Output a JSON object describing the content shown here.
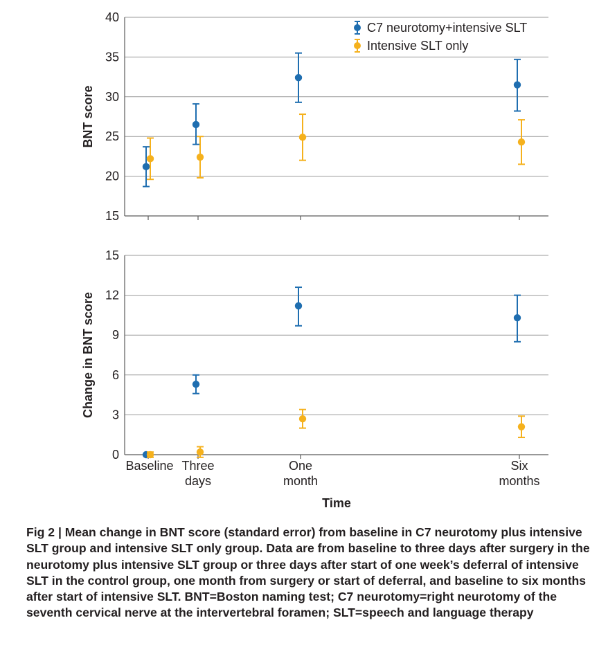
{
  "colors": {
    "c7": "#1f6eb0",
    "slt": "#f5b11d",
    "grid": "#9a9a9a",
    "axis": "#5a5a5a"
  },
  "legend": [
    {
      "label": "C7 neurotomy+intensive SLT",
      "color_key": "c7"
    },
    {
      "label": "Intensive SLT only",
      "color_key": "slt"
    }
  ],
  "chart_data": [
    {
      "type": "scatter",
      "ylabel": "BNT score",
      "ylim": [
        15,
        40
      ],
      "yticks": [
        15,
        20,
        25,
        30,
        35,
        40
      ],
      "grid": true,
      "legend_position": "top-right",
      "x_categories": [
        "Baseline",
        "Three days",
        "One month",
        "Six months"
      ],
      "x_day": [
        0,
        3,
        30,
        180
      ],
      "series": [
        {
          "name": "C7 neurotomy+intensive SLT",
          "x": [
            0,
            3,
            30,
            180
          ],
          "y": [
            21.2,
            26.5,
            32.4,
            31.5
          ],
          "err_low": [
            18.7,
            24.0,
            29.3,
            28.2
          ],
          "err_high": [
            23.7,
            29.1,
            35.5,
            34.7
          ]
        },
        {
          "name": "Intensive SLT only",
          "x": [
            0,
            3,
            30,
            180
          ],
          "y": [
            22.2,
            22.4,
            24.9,
            24.3
          ],
          "err_low": [
            19.6,
            19.8,
            22.0,
            21.5
          ],
          "err_high": [
            24.8,
            25.0,
            27.8,
            27.1
          ]
        }
      ]
    },
    {
      "type": "scatter",
      "ylabel": "Change in BNT score",
      "xlabel": "Time",
      "ylim": [
        0,
        15
      ],
      "yticks": [
        0,
        3,
        6,
        9,
        12,
        15
      ],
      "grid": true,
      "x_categories": [
        "Baseline",
        "Three days",
        "One month",
        "Six months"
      ],
      "x_day": [
        0,
        3,
        30,
        180
      ],
      "x_tick_lines": [
        [
          "Baseline"
        ],
        [
          "Three",
          "days"
        ],
        [
          "One",
          "month"
        ],
        [
          "Six",
          "months"
        ]
      ],
      "series": [
        {
          "name": "C7 neurotomy+intensive SLT",
          "x": [
            0,
            3,
            30,
            180
          ],
          "y": [
            0,
            5.3,
            11.2,
            10.3
          ],
          "err_low": [
            0,
            4.6,
            9.7,
            8.5
          ],
          "err_high": [
            0,
            6.0,
            12.6,
            12.0
          ]
        },
        {
          "name": "Intensive SLT only",
          "x": [
            0,
            3,
            30,
            180
          ],
          "y": [
            0,
            0.2,
            2.7,
            2.1
          ],
          "err_low": [
            -0.2,
            -0.2,
            2.0,
            1.3
          ],
          "err_high": [
            0.2,
            0.6,
            3.4,
            2.9
          ]
        }
      ]
    }
  ],
  "caption": "Fig 2 | Mean change in BNT score (standard error) from baseline in C7 neurotomy plus intensive SLT group and intensive SLT only group. Data are from baseline to three days after surgery in the neurotomy plus intensive SLT group or three days after start of one week’s deferral of intensive SLT in the control group, one month from surgery or start of deferral, and baseline to six months after start of intensive SLT. BNT=Boston naming test; C7 neurotomy=right neurotomy of the seventh cervical nerve at the intervertebral foramen; SLT=speech and language therapy"
}
